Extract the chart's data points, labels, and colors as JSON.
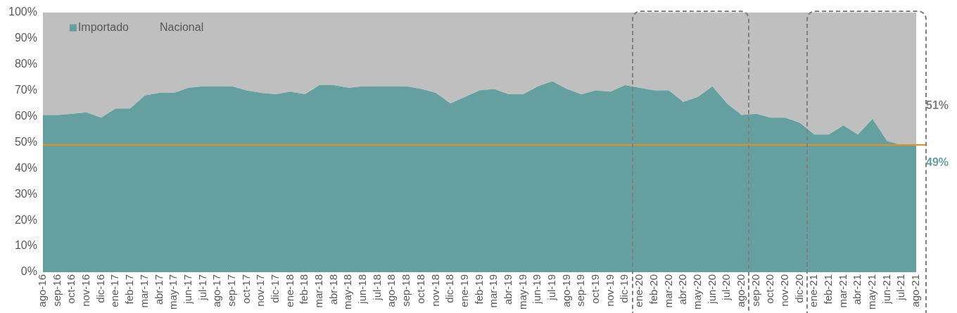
{
  "chart_data": {
    "type": "area",
    "stacked": true,
    "categories": [
      "ago-16",
      "sep-16",
      "oct-16",
      "nov-16",
      "dic-16",
      "ene-17",
      "feb-17",
      "mar-17",
      "abr-17",
      "may-17",
      "jun-17",
      "jul-17",
      "ago-17",
      "sep-17",
      "oct-17",
      "nov-17",
      "dic-17",
      "ene-18",
      "feb-18",
      "mar-18",
      "abr-18",
      "may-18",
      "jun-18",
      "jul-18",
      "ago-18",
      "sep-18",
      "oct-18",
      "nov-18",
      "dic-18",
      "ene-19",
      "feb-19",
      "mar-19",
      "abr-19",
      "may-19",
      "jun-19",
      "jul-19",
      "ago-19",
      "sep-19",
      "oct-19",
      "nov-19",
      "dic-19",
      "ene-20",
      "feb-20",
      "mar-20",
      "abr-20",
      "may-20",
      "jun-20",
      "jul-20",
      "ago-20",
      "sep-20",
      "oct-20",
      "nov-20",
      "dic-20",
      "ene-21",
      "feb-21",
      "mar-21",
      "abr-21",
      "may-21",
      "jun-21",
      "jul-21",
      "ago-21"
    ],
    "series": [
      {
        "name": "Importado",
        "color": "#669f9f",
        "values": [
          60.5,
          60.5,
          61,
          61.5,
          59.5,
          63,
          63,
          68,
          69,
          69,
          71,
          71.5,
          71.5,
          71.5,
          70,
          69,
          68.5,
          69.5,
          68.5,
          72,
          72,
          71,
          71.5,
          71.5,
          71.5,
          71.5,
          70.5,
          69,
          65,
          67.5,
          70,
          70.5,
          68.5,
          68.5,
          71.5,
          73.5,
          70.5,
          68.5,
          70,
          69.5,
          72,
          71,
          70,
          70,
          65.5,
          67.5,
          71.5,
          65,
          60.5,
          61,
          59.5,
          59.5,
          57.5,
          53,
          53,
          56.5,
          53,
          59,
          50.5,
          49,
          49
        ]
      },
      {
        "name": "Nacional",
        "color": "#bfbfbf",
        "values": [
          39.5,
          39.5,
          39,
          38.5,
          40.5,
          37,
          37,
          32,
          31,
          31,
          29,
          28.5,
          28.5,
          28.5,
          30,
          31,
          31.5,
          30.5,
          31.5,
          28,
          28,
          29,
          28.5,
          28.5,
          28.5,
          28.5,
          29.5,
          31,
          35,
          32.5,
          30,
          29.5,
          31.5,
          31.5,
          28.5,
          26.5,
          29.5,
          31.5,
          30,
          30.5,
          28,
          29,
          30,
          30,
          34.5,
          32.5,
          28.5,
          35,
          39.5,
          39,
          40.5,
          40.5,
          42.5,
          47,
          47,
          43.5,
          47,
          41,
          49.5,
          51,
          51
        ]
      }
    ],
    "ylim": [
      0,
      100
    ],
    "yticks": [
      {
        "value": 0,
        "label": "0%"
      },
      {
        "value": 10,
        "label": "10%"
      },
      {
        "value": 20,
        "label": "20%"
      },
      {
        "value": 30,
        "label": "30%"
      },
      {
        "value": 40,
        "label": "40%"
      },
      {
        "value": 50,
        "label": "50%"
      },
      {
        "value": 60,
        "label": "60%"
      },
      {
        "value": 70,
        "label": "70%"
      },
      {
        "value": 80,
        "label": "80%"
      },
      {
        "value": 90,
        "label": "90%"
      },
      {
        "value": 100,
        "label": "100%"
      }
    ],
    "ref_lines": [
      {
        "axis": "y",
        "value": 49,
        "label": null,
        "color": "#e8901a"
      }
    ],
    "annotations": [
      {
        "text": "51%",
        "x": "ago-21",
        "y": 64
      },
      {
        "text": "49%",
        "x": "ago-21",
        "y": 42
      }
    ],
    "legend": "top left",
    "grid": false,
    "marker": "none"
  }
}
